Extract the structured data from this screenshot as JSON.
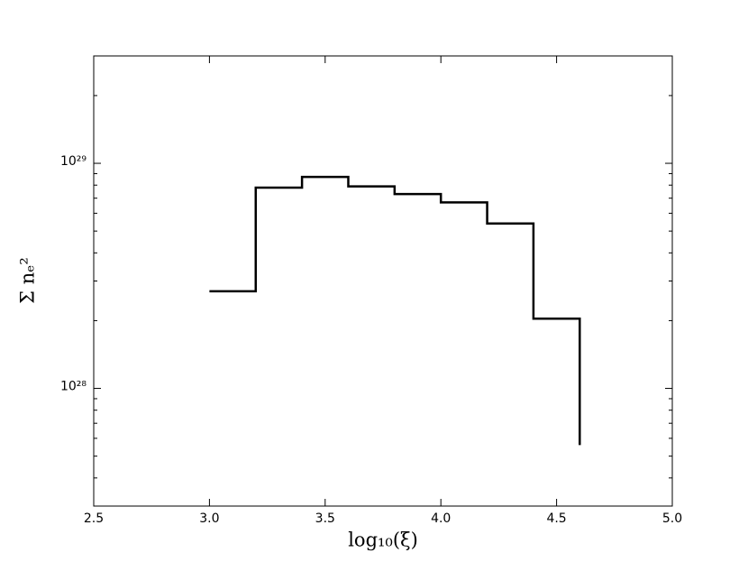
{
  "chart_data": {
    "type": "line",
    "drawstyle": "steps-post",
    "color": "#000000",
    "xlabel": "log₁₀(ξ)",
    "ylabel": "Σ nₑ²",
    "x": [
      3.0,
      3.2,
      3.4,
      3.6,
      3.8,
      4.0,
      4.2,
      4.4,
      4.6
    ],
    "values": [
      2.7e+28,
      7.8e+28,
      8.7e+28,
      7.9e+28,
      7.3e+28,
      6.7e+28,
      5.4e+28,
      2.04e+28,
      5.6e+27
    ],
    "xlim": [
      2.5,
      5.0
    ],
    "xticks": [
      {
        "value": 2.5,
        "label": "2.5"
      },
      {
        "value": 3.0,
        "label": "3.0"
      },
      {
        "value": 3.5,
        "label": "3.5"
      },
      {
        "value": 4.0,
        "label": "4.0"
      },
      {
        "value": 4.5,
        "label": "4.5"
      },
      {
        "value": 5.0,
        "label": "5.0"
      }
    ],
    "ylim": [
      3e+27,
      3e+29
    ],
    "yscale": "log",
    "yticks": [
      {
        "value": 1e+28,
        "label": "10²⁸"
      },
      {
        "value": 1e+29,
        "label": "10²⁹"
      }
    ],
    "yminor_ticks": [
      4e+27,
      5e+27,
      6e+27,
      7e+27,
      8e+27,
      9e+27,
      2e+28,
      3e+28,
      4e+28,
      5e+28,
      6e+28,
      7e+28,
      8e+28,
      9e+28,
      2e+29,
      3e+29
    ]
  }
}
